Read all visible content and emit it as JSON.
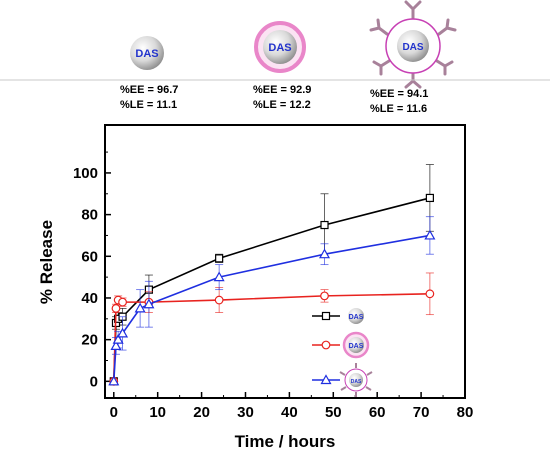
{
  "header": {
    "particles": [
      {
        "label": "DAS",
        "ee": "%EE = 96.7",
        "le": "%LE = 11.1"
      },
      {
        "label": "DAS",
        "ee": "%EE = 92.9",
        "le": "%LE = 12.2"
      },
      {
        "label": "DAS",
        "ee": "%EE = 94.1",
        "le": "%LE = 11.6"
      }
    ]
  },
  "chart_data": {
    "type": "line",
    "title": "",
    "xlabel": "Time / hours",
    "ylabel": "% Release",
    "xlim": [
      -2,
      80
    ],
    "ylim": [
      -8,
      123
    ],
    "xticks": [
      0,
      10,
      20,
      30,
      40,
      50,
      60,
      70,
      80
    ],
    "yticks": [
      0,
      20,
      40,
      60,
      80,
      100
    ],
    "grid": false,
    "legend_position": "bottom-right",
    "series": [
      {
        "marker": "square",
        "color": "#000000",
        "legend_label": "DAS",
        "x": [
          0,
          0.5,
          1,
          2,
          8,
          24,
          48,
          72
        ],
        "y": [
          0,
          28,
          30,
          31,
          44,
          59,
          75,
          88
        ],
        "err": [
          0,
          3,
          3,
          4,
          7,
          2,
          15,
          16
        ]
      },
      {
        "marker": "circle",
        "color": "#e8231f",
        "legend_label": "DAS",
        "x": [
          0,
          0.5,
          1,
          2,
          8,
          24,
          48,
          72
        ],
        "y": [
          0,
          35,
          39,
          38,
          38,
          39,
          41,
          42
        ],
        "err": [
          0,
          2,
          2,
          2,
          5,
          6,
          3,
          10
        ]
      },
      {
        "marker": "triangle",
        "color": "#1f2fe0",
        "legend_label": "DAS",
        "x": [
          0,
          0.5,
          1,
          2,
          6,
          8,
          24,
          48,
          72
        ],
        "y": [
          0,
          17,
          20,
          23,
          35,
          37,
          50,
          61,
          70
        ],
        "err": [
          0,
          4,
          4,
          8,
          9,
          11,
          6,
          5,
          9
        ]
      }
    ]
  }
}
